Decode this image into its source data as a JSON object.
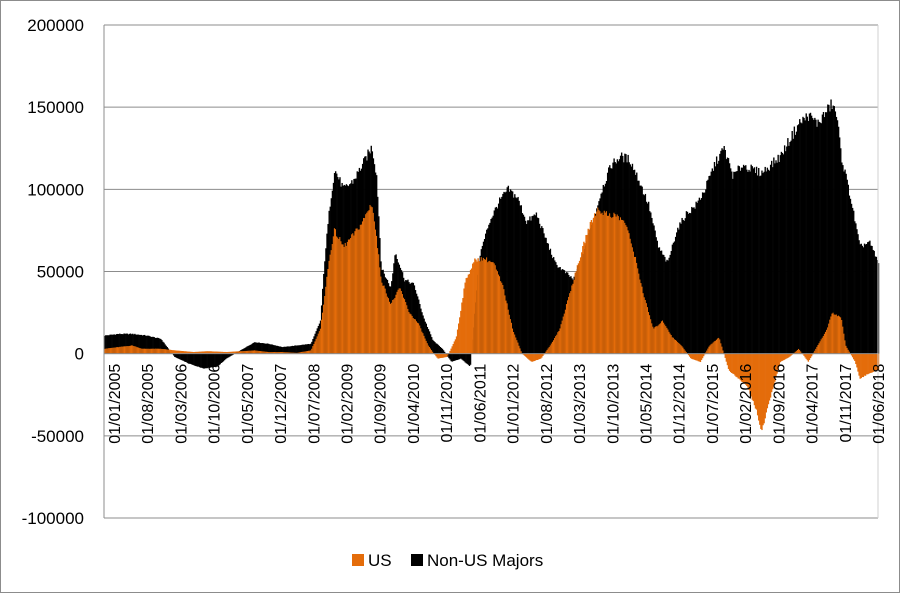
{
  "chart_data": {
    "type": "bar",
    "stacked": true,
    "title": "",
    "xlabel": "",
    "ylabel": "",
    "ylim": [
      -100000,
      200000
    ],
    "yticks": [
      200000,
      150000,
      100000,
      50000,
      0,
      -50000,
      -100000
    ],
    "ytick_labels": [
      "200000",
      "150000",
      "100000",
      "50000",
      "0",
      "-50000",
      "-100000"
    ],
    "grid": "horizontal",
    "legend_position": "bottom",
    "x_start": "2005-01-01",
    "x_end": "2018-09-30",
    "xtick_labels": [
      "01/01/2005",
      "01/08/2005",
      "01/03/2006",
      "01/10/2006",
      "01/05/2007",
      "01/12/2007",
      "01/07/2008",
      "01/02/2009",
      "01/09/2009",
      "01/04/2010",
      "01/11/2010",
      "01/06/2011",
      "01/01/2012",
      "01/08/2012",
      "01/03/2013",
      "01/10/2013",
      "01/05/2014",
      "01/12/2014",
      "01/07/2015",
      "01/02/2016",
      "01/09/2016",
      "01/04/2017",
      "01/11/2017",
      "01/06/2018"
    ],
    "series": [
      {
        "name": "US",
        "color": "#e46c0a",
        "points": [
          [
            "2005-01-01",
            3000
          ],
          [
            "2005-04-01",
            4000
          ],
          [
            "2005-07-01",
            5000
          ],
          [
            "2005-09-01",
            3000
          ],
          [
            "2006-01-01",
            3000
          ],
          [
            "2006-04-01",
            2000
          ],
          [
            "2006-08-01",
            1000
          ],
          [
            "2006-11-01",
            1500
          ],
          [
            "2007-03-01",
            1000
          ],
          [
            "2007-06-01",
            1500
          ],
          [
            "2007-09-01",
            2000
          ],
          [
            "2007-12-01",
            1000
          ],
          [
            "2008-03-01",
            1000
          ],
          [
            "2008-06-01",
            500
          ],
          [
            "2008-09-01",
            2000
          ],
          [
            "2008-11-01",
            15000
          ],
          [
            "2009-01-01",
            60000
          ],
          [
            "2009-02-01",
            75000
          ],
          [
            "2009-04-01",
            65000
          ],
          [
            "2009-06-01",
            72000
          ],
          [
            "2009-08-01",
            80000
          ],
          [
            "2009-10-01",
            92000
          ],
          [
            "2009-11-01",
            70000
          ],
          [
            "2009-12-01",
            45000
          ],
          [
            "2010-02-01",
            30000
          ],
          [
            "2010-04-01",
            40000
          ],
          [
            "2010-06-01",
            25000
          ],
          [
            "2010-08-01",
            18000
          ],
          [
            "2010-10-01",
            5000
          ],
          [
            "2010-12-01",
            -3000
          ],
          [
            "2011-02-01",
            -2000
          ],
          [
            "2011-04-01",
            10000
          ],
          [
            "2011-06-01",
            45000
          ],
          [
            "2011-08-01",
            57000
          ],
          [
            "2011-10-01",
            58000
          ],
          [
            "2011-12-01",
            55000
          ],
          [
            "2012-02-01",
            40000
          ],
          [
            "2012-04-01",
            15000
          ],
          [
            "2012-06-01",
            0
          ],
          [
            "2012-08-01",
            -5000
          ],
          [
            "2012-10-01",
            -3000
          ],
          [
            "2012-12-01",
            5000
          ],
          [
            "2013-02-01",
            15000
          ],
          [
            "2013-04-01",
            35000
          ],
          [
            "2013-06-01",
            55000
          ],
          [
            "2013-08-01",
            75000
          ],
          [
            "2013-10-01",
            88000
          ],
          [
            "2013-12-01",
            85000
          ],
          [
            "2014-02-01",
            84000
          ],
          [
            "2014-04-01",
            80000
          ],
          [
            "2014-06-01",
            60000
          ],
          [
            "2014-08-01",
            35000
          ],
          [
            "2014-10-01",
            15000
          ],
          [
            "2014-12-01",
            20000
          ],
          [
            "2015-02-01",
            10000
          ],
          [
            "2015-04-01",
            5000
          ],
          [
            "2015-06-01",
            -3000
          ],
          [
            "2015-08-01",
            -5000
          ],
          [
            "2015-10-01",
            5000
          ],
          [
            "2015-12-01",
            10000
          ],
          [
            "2016-02-01",
            -10000
          ],
          [
            "2016-04-01",
            -15000
          ],
          [
            "2016-06-01",
            -20000
          ],
          [
            "2016-08-01",
            -35000
          ],
          [
            "2016-09-01",
            -48000
          ],
          [
            "2016-11-01",
            -25000
          ],
          [
            "2017-01-01",
            -5000
          ],
          [
            "2017-03-01",
            -2000
          ],
          [
            "2017-05-01",
            3000
          ],
          [
            "2017-07-01",
            -5000
          ],
          [
            "2017-09-01",
            5000
          ],
          [
            "2017-11-01",
            15000
          ],
          [
            "2017-12-01",
            25000
          ],
          [
            "2018-02-01",
            22000
          ],
          [
            "2018-03-01",
            5000
          ],
          [
            "2018-05-01",
            -5000
          ],
          [
            "2018-06-01",
            -15000
          ],
          [
            "2018-08-01",
            -12000
          ],
          [
            "2018-09-30",
            -10000
          ]
        ]
      },
      {
        "name": "Non-US Majors",
        "color": "#000000",
        "points": [
          [
            "2005-01-01",
            11000
          ],
          [
            "2005-04-01",
            12000
          ],
          [
            "2005-07-01",
            12000
          ],
          [
            "2005-10-01",
            11000
          ],
          [
            "2006-01-01",
            9000
          ],
          [
            "2006-04-01",
            -2000
          ],
          [
            "2006-07-01",
            -6000
          ],
          [
            "2006-10-01",
            -9000
          ],
          [
            "2007-01-01",
            -8000
          ],
          [
            "2007-03-01",
            -3000
          ],
          [
            "2007-06-01",
            2000
          ],
          [
            "2007-09-01",
            7000
          ],
          [
            "2007-12-01",
            6000
          ],
          [
            "2008-03-01",
            4000
          ],
          [
            "2008-06-01",
            5000
          ],
          [
            "2008-09-01",
            6000
          ],
          [
            "2008-11-01",
            20000
          ],
          [
            "2008-12-01",
            60000
          ],
          [
            "2009-01-01",
            90000
          ],
          [
            "2009-02-01",
            112000
          ],
          [
            "2009-04-01",
            100000
          ],
          [
            "2009-06-01",
            105000
          ],
          [
            "2009-08-01",
            115000
          ],
          [
            "2009-10-01",
            126000
          ],
          [
            "2009-11-01",
            108000
          ],
          [
            "2009-12-01",
            52000
          ],
          [
            "2010-02-01",
            40000
          ],
          [
            "2010-03-01",
            62000
          ],
          [
            "2010-05-01",
            45000
          ],
          [
            "2010-07-01",
            42000
          ],
          [
            "2010-09-01",
            22000
          ],
          [
            "2010-11-01",
            8000
          ],
          [
            "2011-01-01",
            3000
          ],
          [
            "2011-03-01",
            -5000
          ],
          [
            "2011-05-01",
            -3000
          ],
          [
            "2011-07-01",
            -8000
          ],
          [
            "2011-09-01",
            60000
          ],
          [
            "2011-11-01",
            80000
          ],
          [
            "2012-01-01",
            92000
          ],
          [
            "2012-03-01",
            100000
          ],
          [
            "2012-05-01",
            95000
          ],
          [
            "2012-07-01",
            80000
          ],
          [
            "2012-09-01",
            85000
          ],
          [
            "2012-11-01",
            70000
          ],
          [
            "2013-01-01",
            55000
          ],
          [
            "2013-03-01",
            50000
          ],
          [
            "2013-05-01",
            45000
          ],
          [
            "2013-07-01",
            60000
          ],
          [
            "2013-09-01",
            80000
          ],
          [
            "2013-11-01",
            100000
          ],
          [
            "2014-01-01",
            115000
          ],
          [
            "2014-03-01",
            120000
          ],
          [
            "2014-05-01",
            118000
          ],
          [
            "2014-07-01",
            105000
          ],
          [
            "2014-09-01",
            90000
          ],
          [
            "2014-11-01",
            65000
          ],
          [
            "2015-01-01",
            55000
          ],
          [
            "2015-03-01",
            75000
          ],
          [
            "2015-05-01",
            85000
          ],
          [
            "2015-07-01",
            90000
          ],
          [
            "2015-09-01",
            100000
          ],
          [
            "2015-11-01",
            115000
          ],
          [
            "2016-01-01",
            125000
          ],
          [
            "2016-03-01",
            108000
          ],
          [
            "2016-05-01",
            115000
          ],
          [
            "2016-07-01",
            112000
          ],
          [
            "2016-09-01",
            110000
          ],
          [
            "2016-11-01",
            115000
          ],
          [
            "2017-01-01",
            120000
          ],
          [
            "2017-03-01",
            130000
          ],
          [
            "2017-05-01",
            140000
          ],
          [
            "2017-07-01",
            145000
          ],
          [
            "2017-09-01",
            140000
          ],
          [
            "2017-11-01",
            148000
          ],
          [
            "2017-12-01",
            152000
          ],
          [
            "2018-01-01",
            145000
          ],
          [
            "2018-02-01",
            120000
          ],
          [
            "2018-04-01",
            95000
          ],
          [
            "2018-06-01",
            65000
          ],
          [
            "2018-08-01",
            68000
          ],
          [
            "2018-09-30",
            55000
          ]
        ]
      }
    ]
  }
}
